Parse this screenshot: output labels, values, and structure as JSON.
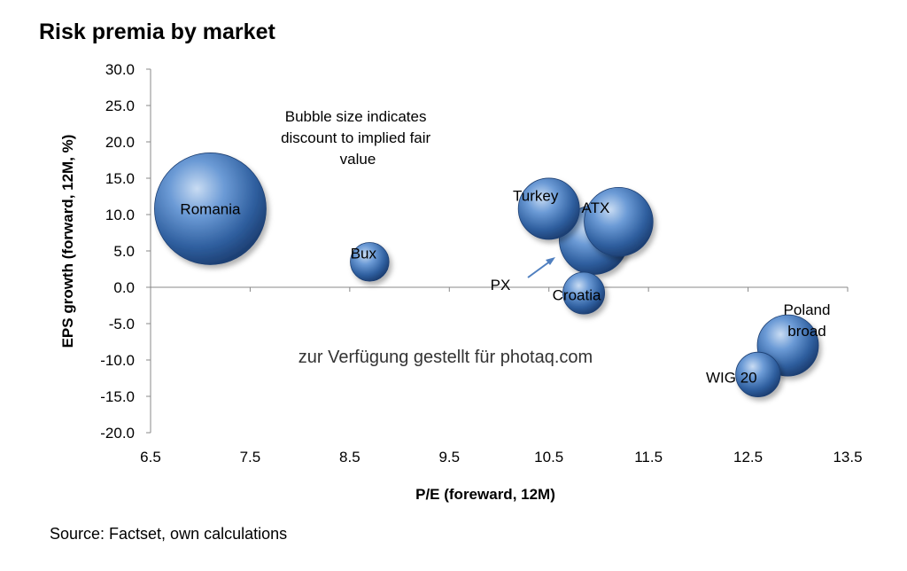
{
  "title": "Risk premia by market",
  "source": "Source: Factset, own calculations",
  "watermark": "zur Verfügung gestellt für photaq.com",
  "annotation": "Bubble size indicates discount to implied fair value",
  "chart_data": {
    "type": "scatter",
    "title": "Risk premia by market",
    "xlabel": "P/E (foreward, 12M)",
    "ylabel": "EPS growth (forward, 12M, %)",
    "xlim": [
      6.5,
      13.5
    ],
    "ylim": [
      -20.0,
      30.0
    ],
    "xticks": [
      "6.5",
      "7.5",
      "8.5",
      "9.5",
      "10.5",
      "11.5",
      "12.5",
      "13.5"
    ],
    "yticks": [
      "30.0",
      "25.0",
      "20.0",
      "15.0",
      "10.0",
      "5.0",
      "0.0",
      "-5.0",
      "-10.0",
      "-15.0",
      "-20.0"
    ],
    "grid": false,
    "bubble_color": "#3f73b3",
    "points": [
      {
        "label": "Romania",
        "x": 7.1,
        "y": 10.8,
        "size": 100
      },
      {
        "label": "Bux",
        "x": 8.7,
        "y": 3.5,
        "size": 12
      },
      {
        "label": "PX",
        "x": 10.95,
        "y": 6.5,
        "size": 38
      },
      {
        "label": "Turkey",
        "x": 10.5,
        "y": 10.8,
        "size": 30
      },
      {
        "label": "ATX",
        "x": 11.2,
        "y": 9.0,
        "size": 38
      },
      {
        "label": "Croatia",
        "x": 10.85,
        "y": -0.8,
        "size": 14
      },
      {
        "label": "Poland broad",
        "x": 12.9,
        "y": -8.0,
        "size": 30
      },
      {
        "label": "WIG 20",
        "x": 12.6,
        "y": -12.0,
        "size": 16
      }
    ]
  }
}
